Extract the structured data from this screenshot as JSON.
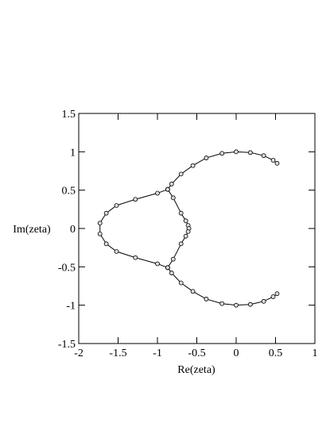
{
  "chart_data": {
    "type": "line",
    "x_label": "Re(zeta)",
    "y_label": "Im(zeta)",
    "xlim": [
      -2,
      1
    ],
    "ylim": [
      -1.5,
      1.5
    ],
    "xticks": [
      -2,
      -1.5,
      -1,
      -0.5,
      0,
      0.5,
      1
    ],
    "yticks": [
      -1.5,
      -1,
      -0.5,
      0,
      0.5,
      1,
      1.5
    ],
    "series": [
      {
        "color": "#000000",
        "x": [
          0.52,
          0.47,
          0.35,
          0.18,
          0.0,
          -0.18,
          -0.38,
          -0.55,
          -0.7,
          -0.82,
          -0.87
        ],
        "y": [
          0.85,
          0.89,
          0.95,
          0.99,
          1.0,
          0.98,
          0.92,
          0.82,
          0.71,
          0.58,
          0.51
        ]
      },
      {
        "color": "#000000",
        "x": [
          -0.87,
          -1.0,
          -1.28,
          -1.52,
          -1.65,
          -1.73,
          -1.73,
          -1.65,
          -1.52,
          -1.28,
          -1.0,
          -0.87
        ],
        "y": [
          0.51,
          0.46,
          0.38,
          0.3,
          0.2,
          0.07,
          -0.07,
          -0.2,
          -0.3,
          -0.38,
          -0.46,
          -0.51
        ]
      },
      {
        "color": "#000000",
        "x": [
          -0.87,
          -0.8,
          -0.7,
          -0.64,
          -0.61,
          -0.6,
          -0.61,
          -0.64,
          -0.7,
          -0.8,
          -0.87
        ],
        "y": [
          0.51,
          0.4,
          0.2,
          0.1,
          0.04,
          0.0,
          -0.04,
          -0.1,
          -0.2,
          -0.4,
          -0.51
        ]
      },
      {
        "color": "#000000",
        "x": [
          0.52,
          0.47,
          0.35,
          0.18,
          0.0,
          -0.18,
          -0.38,
          -0.55,
          -0.7,
          -0.82,
          -0.87
        ],
        "y": [
          -0.85,
          -0.89,
          -0.95,
          -0.99,
          -1.0,
          -0.98,
          -0.92,
          -0.82,
          -0.71,
          -0.58,
          -0.51
        ]
      }
    ]
  }
}
